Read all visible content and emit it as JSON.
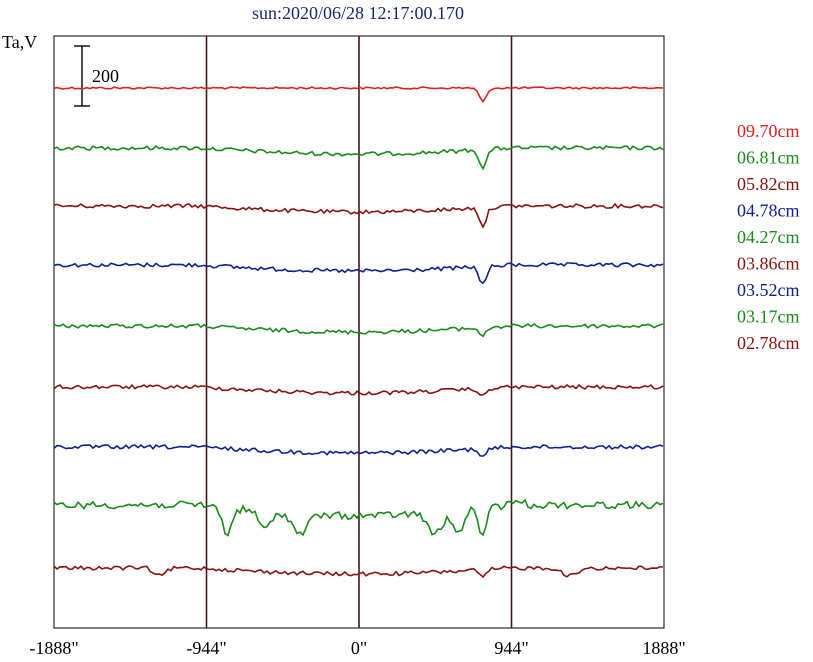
{
  "title": "sun:2020/06/28 12:17:00.170",
  "chart_data": {
    "type": "line",
    "title": "sun:2020/06/28 12:17:00.170",
    "ylabel": "Ta,V",
    "xlabel": "",
    "scale_bar_label": "200",
    "xlim": [
      -1888,
      1888
    ],
    "xticks": [
      {
        "value": -1888,
        "label": "-1888\""
      },
      {
        "value": -944,
        "label": "-944\""
      },
      {
        "value": 0,
        "label": "0\""
      },
      {
        "value": 944,
        "label": "944\""
      },
      {
        "value": 1888,
        "label": "1888\""
      }
    ],
    "vertical_lines": [
      -944,
      0,
      944
    ],
    "series": [
      {
        "name": "09.70cm",
        "color": "#e02020",
        "baseline": 88
      },
      {
        "name": "06.81cm",
        "color": "#1a8a1a",
        "baseline": 148
      },
      {
        "name": "05.82cm",
        "color": "#8b1010",
        "baseline": 206
      },
      {
        "name": "04.78cm",
        "color": "#102090",
        "baseline": 265
      },
      {
        "name": "04.27cm",
        "color": "#1a8a1a",
        "baseline": 326
      },
      {
        "name": "03.86cm",
        "color": "#8b1010",
        "baseline": 387
      },
      {
        "name": "03.52cm",
        "color": "#102090",
        "baseline": 447
      },
      {
        "name": "03.17cm",
        "color": "#1a8a1a",
        "baseline": 505
      },
      {
        "name": "02.78cm",
        "color": "#8b1010",
        "baseline": 568
      }
    ]
  }
}
